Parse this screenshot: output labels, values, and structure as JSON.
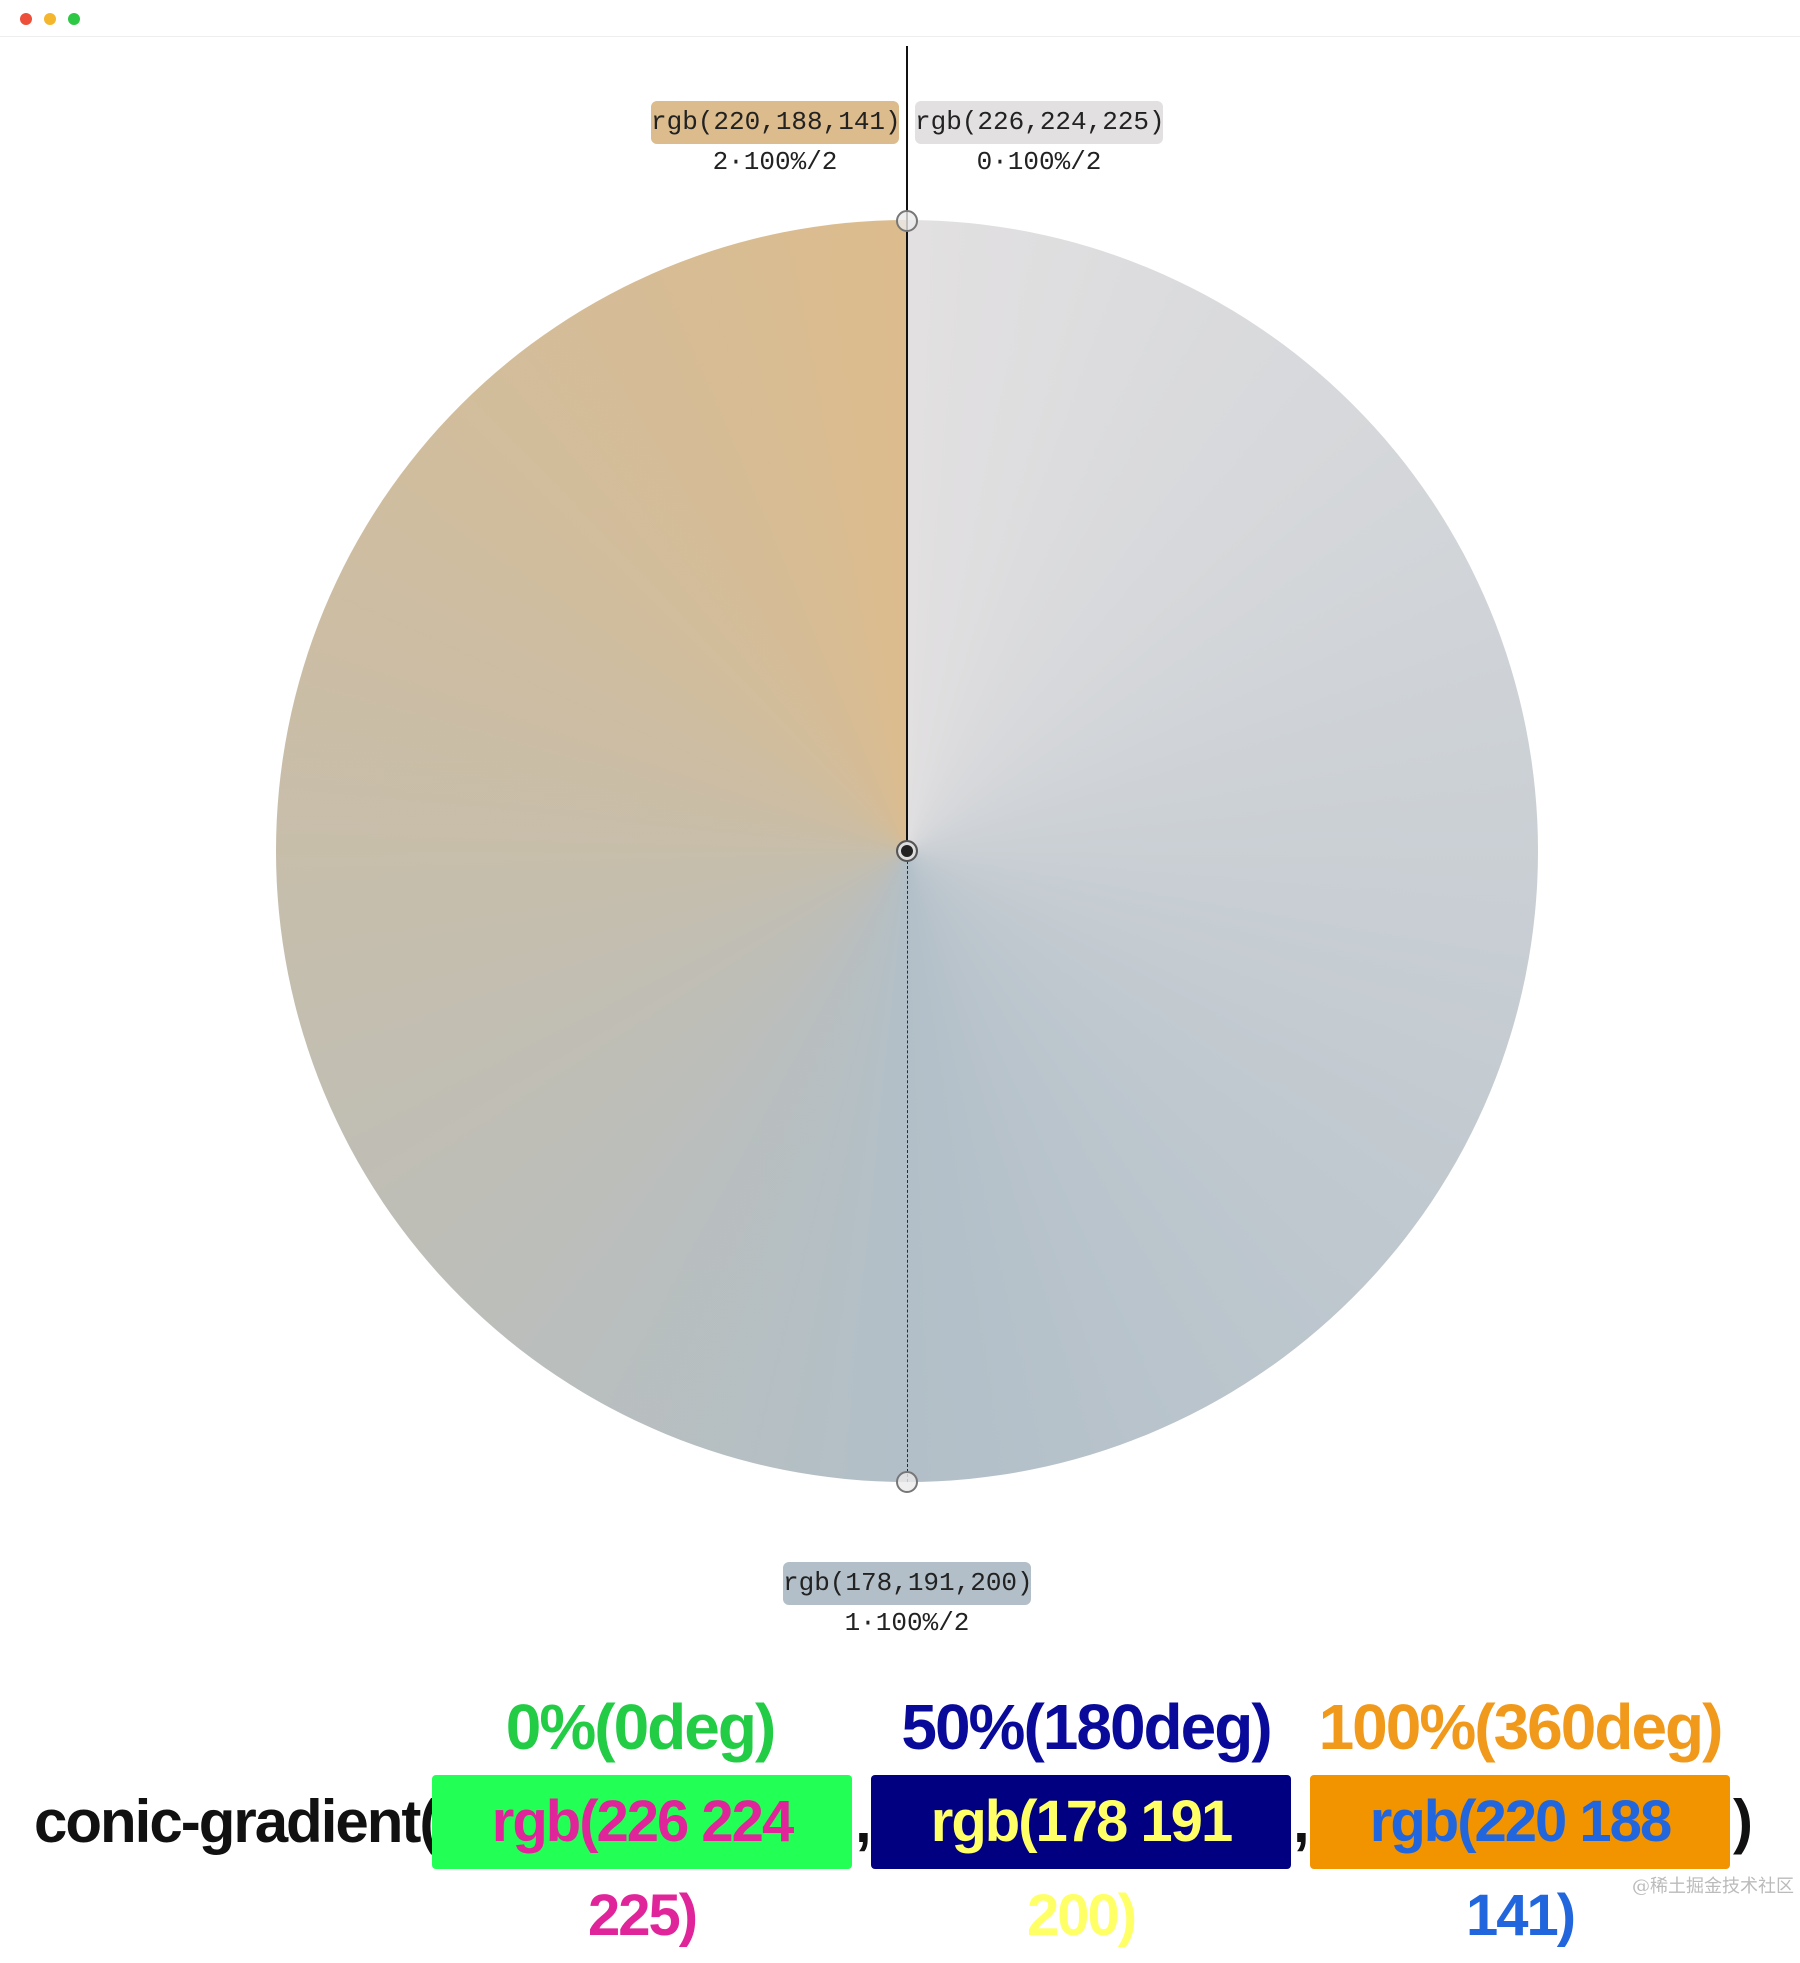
{
  "labels": [
    {
      "color_text": "rgb(220,188,141)",
      "position": "2·100%/2"
    },
    {
      "color_text": "rgb(226,224,225)",
      "position": "0·100%/2"
    },
    {
      "color_text": "rgb(178,191,200)",
      "position": "1·100%/2"
    }
  ],
  "stops": [
    {
      "heading": "0%(0deg)",
      "code": "rgb(226 224 225)"
    },
    {
      "heading": "50%(180deg)",
      "code": "rgb(178 191 200)"
    },
    {
      "heading": "100%(360deg)",
      "code": "rgb(220 188 141)"
    }
  ],
  "code": {
    "prefix": "conic-gradient(",
    "separator": ",",
    "suffix": ")"
  },
  "watermark": "@稀土掘金技术社区"
}
